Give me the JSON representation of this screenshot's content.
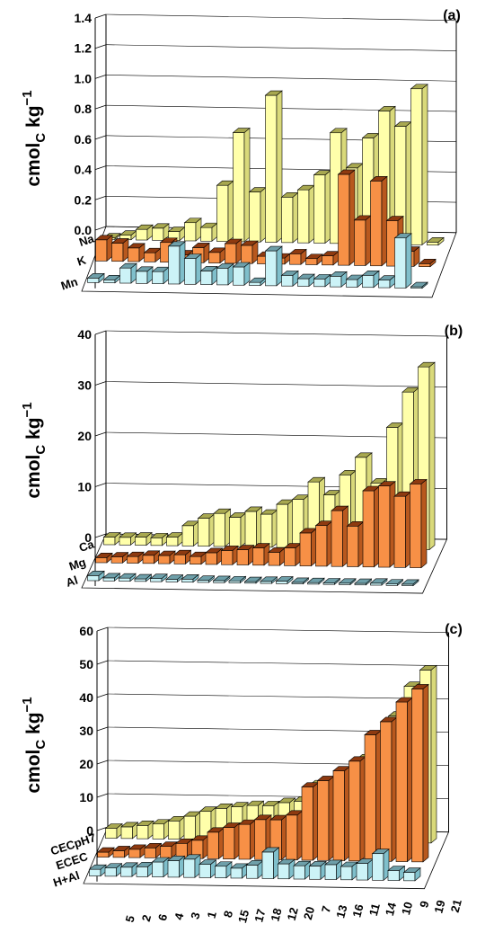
{
  "chart_data": [
    {
      "type": "bar",
      "panel_label": "(a)",
      "ylabel": "cmolc kg−1",
      "ylabel_parts": {
        "main": "cmol",
        "sub": "C",
        "unit": " kg",
        "sup": "−1"
      },
      "yticks": [
        "0.0",
        "0.2",
        "0.4",
        "0.6",
        "0.8",
        "1.0",
        "1.2",
        "1.4"
      ],
      "ylim": [
        0,
        1.4
      ],
      "categories": [
        "5",
        "2",
        "6",
        "4",
        "3",
        "1",
        "8",
        "15",
        "17",
        "18",
        "12",
        "20",
        "7",
        "13",
        "16",
        "11",
        "14",
        "10",
        "9",
        "19",
        "21"
      ],
      "series": [
        {
          "name": "Na",
          "values": [
            0.01,
            0.03,
            0.07,
            0.08,
            0.06,
            0.12,
            0.09,
            0.37,
            0.72,
            0.33,
            0.97,
            0.3,
            0.35,
            0.45,
            0.73,
            0.5,
            0.7,
            0.88,
            0.78,
            1.03,
            0.02
          ]
        },
        {
          "name": "K",
          "values": [
            0.14,
            0.12,
            0.09,
            0.06,
            0.13,
            0.05,
            0.1,
            0.07,
            0.13,
            0.12,
            0.05,
            0.04,
            0.07,
            0.04,
            0.06,
            0.6,
            0.3,
            0.56,
            0.3,
            0.1,
            0.02
          ]
        },
        {
          "name": "Mn",
          "values": [
            0.03,
            0.02,
            0.1,
            0.08,
            0.08,
            0.25,
            0.17,
            0.09,
            0.11,
            0.12,
            0.02,
            0.23,
            0.07,
            0.05,
            0.05,
            0.07,
            0.05,
            0.08,
            0.05,
            0.33,
            0.01
          ]
        }
      ]
    },
    {
      "type": "bar",
      "panel_label": "(b)",
      "ylabel": "cmolc kg−1",
      "ylabel_parts": {
        "main": "cmol",
        "sub": "C",
        "unit": " kg",
        "sup": "−1"
      },
      "yticks": [
        "0",
        "10",
        "20",
        "30",
        "40"
      ],
      "ylim": [
        0,
        40
      ],
      "categories": [
        "5",
        "2",
        "6",
        "4",
        "3",
        "1",
        "8",
        "15",
        "17",
        "18",
        "12",
        "20",
        "7",
        "13",
        "16",
        "11",
        "14",
        "10",
        "9",
        "19",
        "21"
      ],
      "series": [
        {
          "name": "Ca",
          "values": [
            1.5,
            1.5,
            1.6,
            1.5,
            1.7,
            4.0,
            5.5,
            6.5,
            5.8,
            7.0,
            6.5,
            8.5,
            9.5,
            13.0,
            10.5,
            14.5,
            18.0,
            13.0,
            24.0,
            31.0,
            36.0
          ]
        },
        {
          "name": "Mg",
          "values": [
            1.0,
            1.2,
            1.3,
            1.6,
            1.6,
            1.8,
            1.5,
            2.3,
            2.8,
            3.0,
            3.4,
            2.6,
            3.5,
            6.5,
            8.0,
            11.0,
            8.0,
            15.0,
            16.0,
            14.0,
            16.5
          ]
        },
        {
          "name": "Al",
          "values": [
            1.0,
            0.6,
            0.6,
            0.5,
            0.6,
            0.5,
            0.6,
            0.4,
            0.4,
            0.4,
            0.3,
            0.4,
            0.5,
            0.3,
            0.3,
            0.3,
            0.3,
            0.3,
            0.4,
            0.3,
            0.3
          ]
        }
      ]
    },
    {
      "type": "bar",
      "panel_label": "(c)",
      "ylabel": "cmolc kg−1",
      "ylabel_parts": {
        "main": "cmol",
        "sub": "C",
        "unit": " kg",
        "sup": "−1"
      },
      "yticks": [
        "0",
        "10",
        "20",
        "30",
        "40",
        "50",
        "60"
      ],
      "ylim": [
        0,
        60
      ],
      "categories": [
        "5",
        "2",
        "6",
        "4",
        "3",
        "1",
        "8",
        "15",
        "17",
        "18",
        "12",
        "20",
        "7",
        "13",
        "16",
        "11",
        "14",
        "10",
        "9",
        "19",
        "21"
      ],
      "series": [
        {
          "name": "CECpH7",
          "values": [
            3.0,
            3.5,
            4.0,
            4.5,
            5.5,
            7.0,
            8.5,
            9.5,
            10.0,
            10.5,
            10.5,
            11.5,
            12.0,
            17.0,
            17.5,
            18.0,
            25.0,
            30.0,
            38.0,
            47.0,
            52.0
          ]
        },
        {
          "name": "ECEC",
          "values": [
            1.5,
            2.0,
            2.5,
            3.0,
            3.5,
            4.5,
            5.5,
            8.0,
            9.5,
            10.5,
            12.0,
            12.0,
            13.5,
            22.0,
            24.0,
            27.0,
            30.0,
            38.0,
            42.0,
            48.0,
            52.0
          ]
        },
        {
          "name": "H+Al",
          "values": [
            2.0,
            2.5,
            2.8,
            3.0,
            4.5,
            5.0,
            5.5,
            4.0,
            3.5,
            3.0,
            4.0,
            8.0,
            4.5,
            4.0,
            4.0,
            4.5,
            4.0,
            5.0,
            8.0,
            3.0,
            2.5
          ]
        }
      ]
    }
  ],
  "colors": {
    "series_top": {
      "face": "#FFFFAA",
      "side": "#D9D97A",
      "top": "#A8A850"
    },
    "series_mid": {
      "face": "#F79046",
      "side": "#B8581E",
      "top": "#8E3A10"
    },
    "series_front": {
      "face": "#CCF3F7",
      "side": "#7FBFCB",
      "top": "#6E9FA9"
    },
    "axis": "#000000",
    "grid": "#000000"
  }
}
